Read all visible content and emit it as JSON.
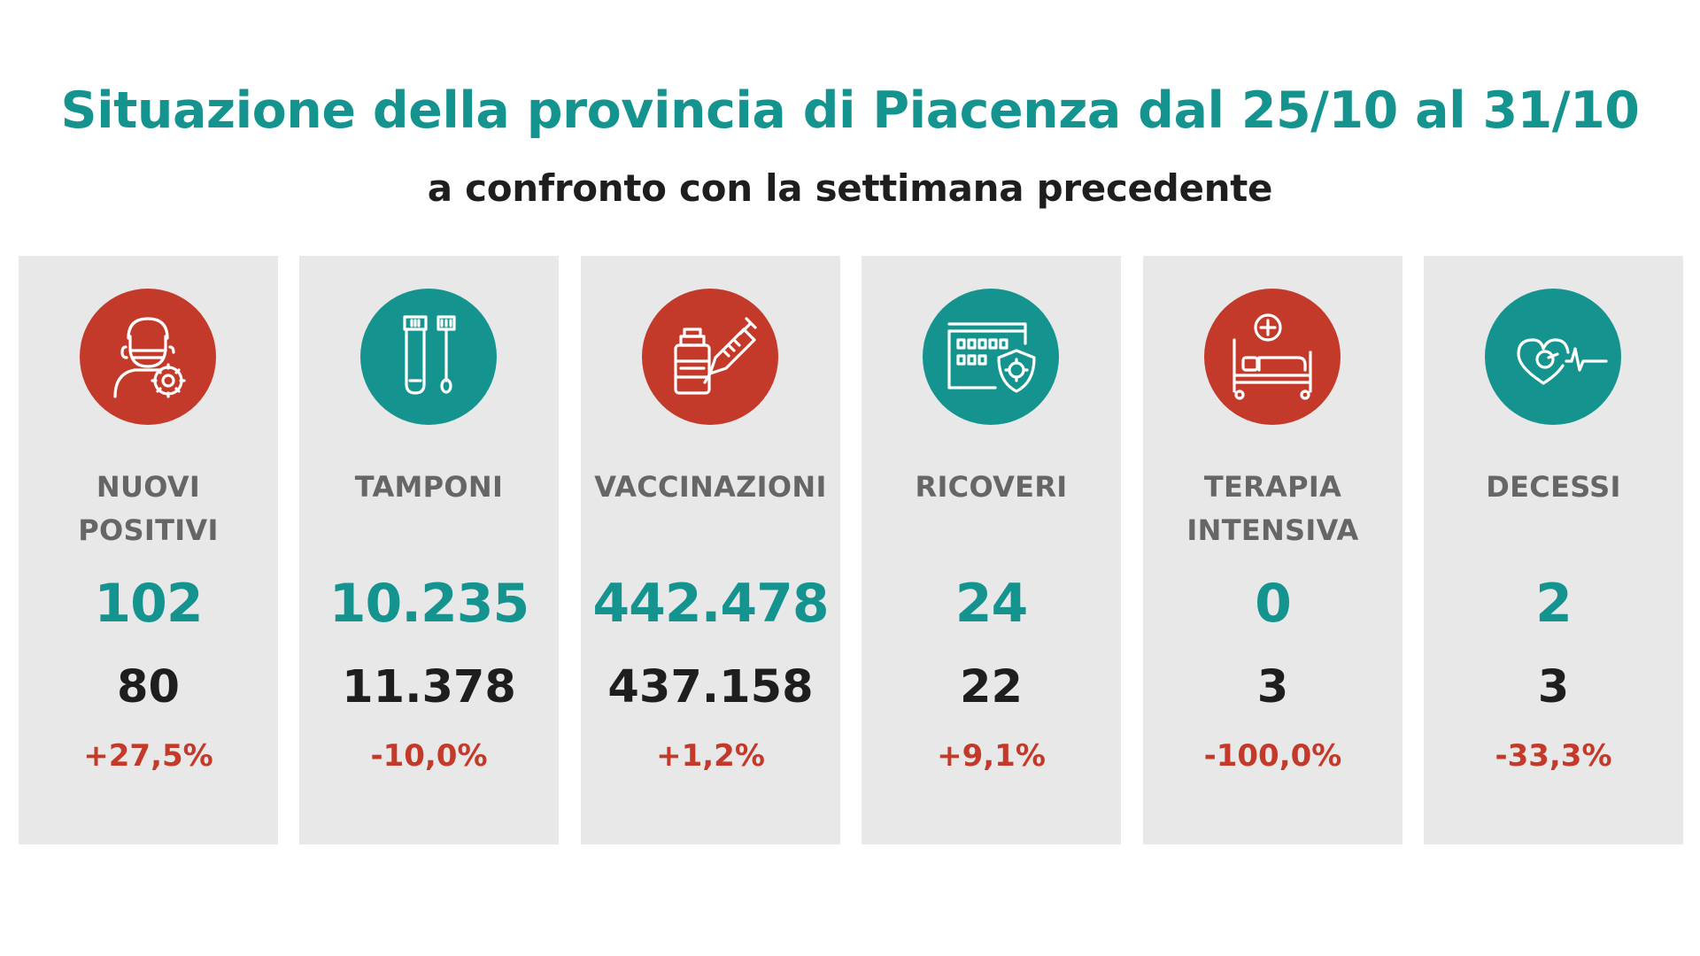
{
  "header": {
    "title": "Situazione della provincia di Piacenza dal 25/10 al 31/10",
    "subtitle": "a confronto con la settimana precedente"
  },
  "colors": {
    "teal": "#15948f",
    "red": "#c33a2a",
    "card_bg": "#e8e8e8",
    "label": "#666666",
    "dark": "#1e1e1e"
  },
  "cards": [
    {
      "label": "NUOVI\nPOSITIVI",
      "current": "102",
      "previous": "80",
      "change": "+27,5%",
      "icon": "masked-person-virus-icon",
      "icon_color": "red"
    },
    {
      "label": "TAMPONI",
      "current": "10.235",
      "previous": "11.378",
      "change": "-10,0%",
      "icon": "test-tube-swab-icon",
      "icon_color": "teal"
    },
    {
      "label": "VACCINAZIONI",
      "current": "442.478",
      "previous": "437.158",
      "change": "+1,2%",
      "icon": "vaccine-vial-syringe-icon",
      "icon_color": "red"
    },
    {
      "label": "RICOVERI",
      "current": "24",
      "previous": "22",
      "change": "+9,1%",
      "icon": "hospital-shield-virus-icon",
      "icon_color": "teal"
    },
    {
      "label": "TERAPIA\nINTENSIVA",
      "current": "0",
      "previous": "3",
      "change": "-100,0%",
      "icon": "hospital-bed-icon",
      "icon_color": "red"
    },
    {
      "label": "DECESSI",
      "current": "2",
      "previous": "3",
      "change": "-33,3%",
      "icon": "heart-pulse-icon",
      "icon_color": "teal"
    }
  ]
}
